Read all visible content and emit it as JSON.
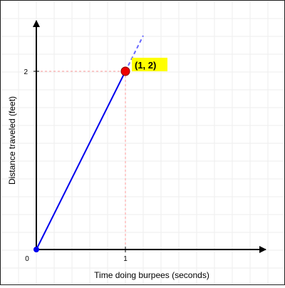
{
  "chart_data": {
    "type": "line",
    "xlabel": "Time doing burpees (seconds)",
    "ylabel": "Distance traveled (feet)",
    "xlim": [
      0,
      2.5
    ],
    "ylim": [
      0,
      2.4
    ],
    "x_ticks": [
      {
        "value": 0,
        "label": "0"
      },
      {
        "value": 1,
        "label": "1"
      }
    ],
    "y_ticks": [
      {
        "value": 2,
        "label": "2"
      }
    ],
    "grid": true,
    "series": [
      {
        "style": "solid",
        "color": "#0000ee",
        "points": [
          [
            0,
            0
          ],
          [
            1,
            2
          ]
        ]
      },
      {
        "style": "dashed",
        "color": "#6666ff",
        "points": [
          [
            1,
            2
          ],
          [
            1.2,
            2.4
          ]
        ]
      }
    ],
    "highlight_point": {
      "x": 1,
      "y": 2,
      "label": "(1, 2)",
      "color": "#ee0000",
      "label_background": "#ffff00"
    },
    "origin_point": {
      "x": 0,
      "y": 0,
      "color": "#0000ee"
    },
    "guide_color": "#ff9999",
    "axis_color": "#000000",
    "grid_color": "#eeeeee"
  }
}
